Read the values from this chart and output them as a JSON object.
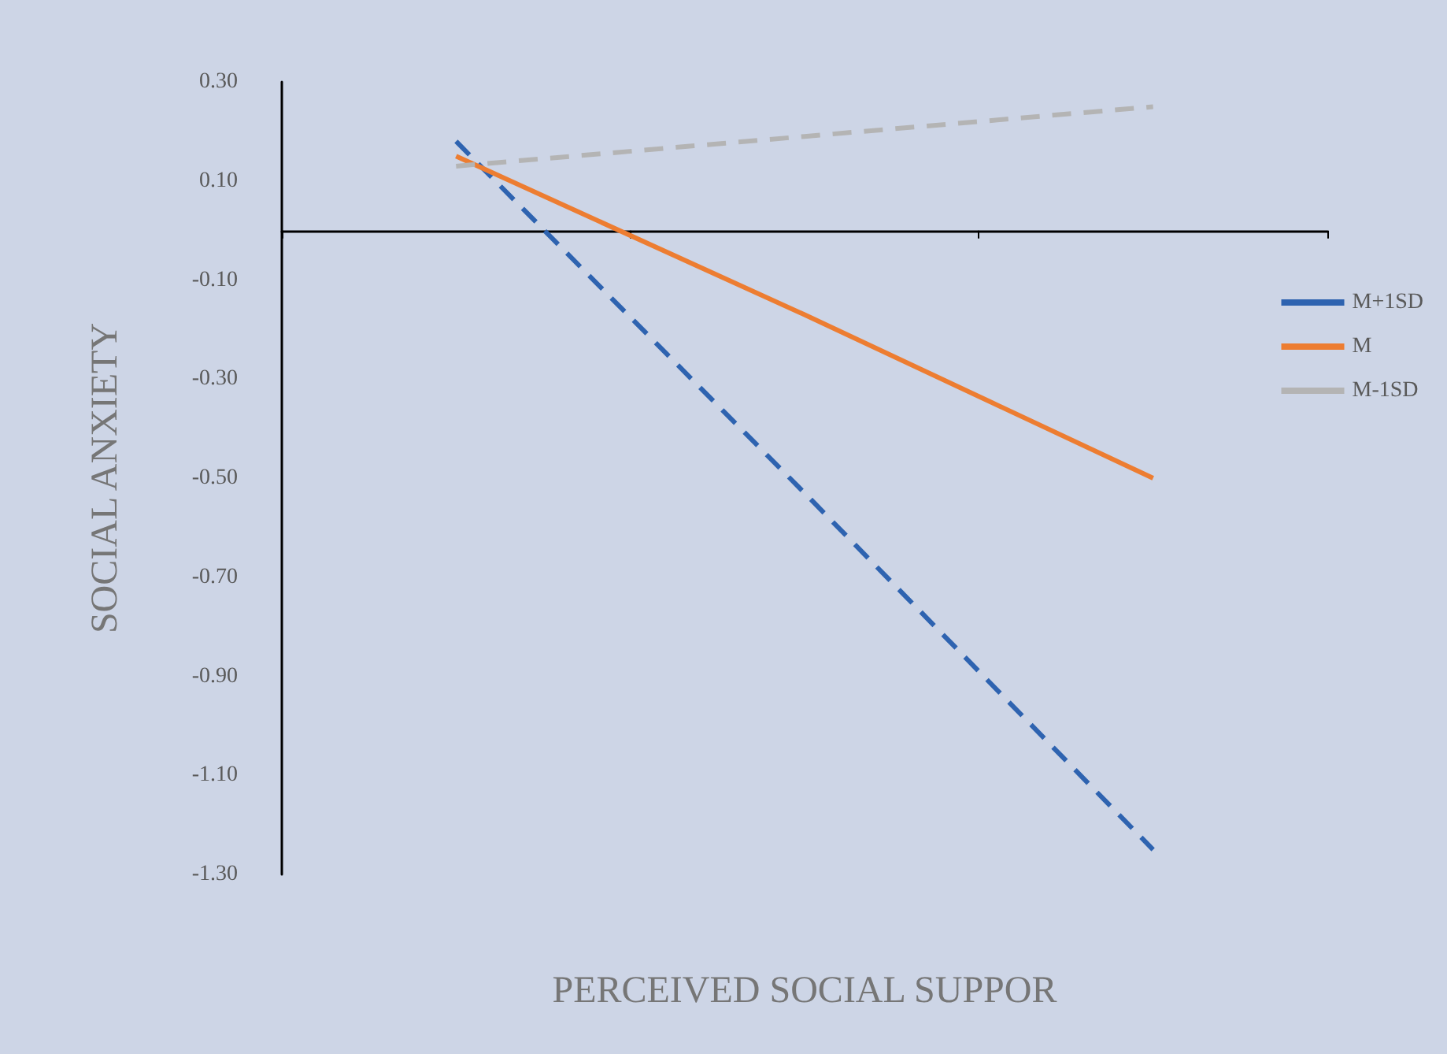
{
  "chart_data": {
    "type": "line",
    "xlabel": "PERCEIVED SOCIAL SUPPOR",
    "ylabel": "SOCIAL ANXIETY",
    "categories": [
      null,
      null,
      null
    ],
    "series": [
      {
        "name": "M+1SD",
        "color": "#2e63b0",
        "values": [
          0.18,
          -0.53,
          -1.25
        ],
        "line_style": "dashed"
      },
      {
        "name": "M",
        "color": "#ed7d31",
        "values": [
          0.15,
          -0.17,
          -0.5
        ],
        "line_style": "solid"
      },
      {
        "name": "M-1SD",
        "color": "#b4b4b4",
        "values": [
          0.13,
          0.19,
          0.25
        ],
        "line_style": "dashed"
      }
    ],
    "ylim": [
      -1.3,
      0.3
    ],
    "yticks": [
      {
        "value": -1.3,
        "label": "-1.30"
      },
      {
        "value": -1.1,
        "label": "-1.10"
      },
      {
        "value": -0.9,
        "label": "-0.90"
      },
      {
        "value": -0.7,
        "label": "-0.70"
      },
      {
        "value": -0.5,
        "label": "-0.50"
      },
      {
        "value": -0.3,
        "label": "-0.30"
      },
      {
        "value": -0.1,
        "label": "-0.10"
      },
      {
        "value": 0.1,
        "label": "0.10"
      },
      {
        "value": 0.3,
        "label": "0.30"
      }
    ],
    "grid": false,
    "legend": "right",
    "marker": "none"
  }
}
